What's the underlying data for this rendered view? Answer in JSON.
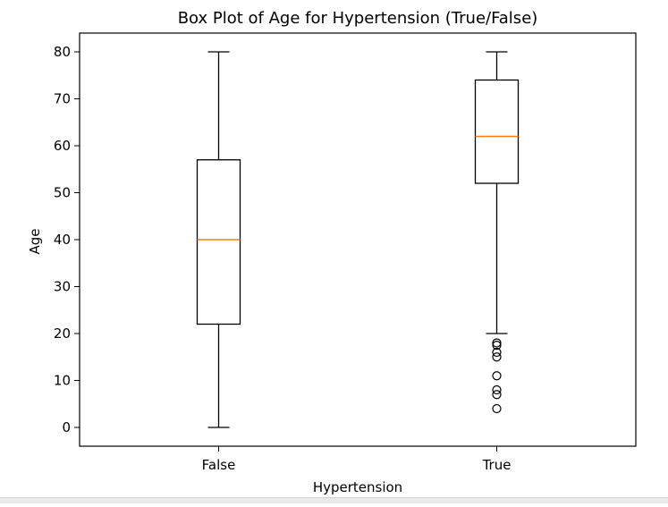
{
  "chart_data": {
    "type": "box",
    "title": "Box Plot of Age for Hypertension (True/False)",
    "xlabel": "Hypertension",
    "ylabel": "Age",
    "ylim": [
      -4,
      84
    ],
    "yticks": [
      0,
      10,
      20,
      30,
      40,
      50,
      60,
      70,
      80
    ],
    "categories": [
      "False",
      "True"
    ],
    "grid": false,
    "boxes": [
      {
        "category": "False",
        "whisker_low": 0,
        "q1": 22,
        "median": 40,
        "q3": 57,
        "whisker_high": 80,
        "outliers": []
      },
      {
        "category": "True",
        "whisker_low": 20,
        "q1": 52,
        "median": 62,
        "q3": 74,
        "whisker_high": 80,
        "outliers": [
          18,
          17.5,
          16,
          15,
          11,
          8,
          7,
          4
        ]
      }
    ],
    "colors": {
      "box": "#000000",
      "median": "#ff7f0e",
      "axes": "#000000"
    }
  }
}
